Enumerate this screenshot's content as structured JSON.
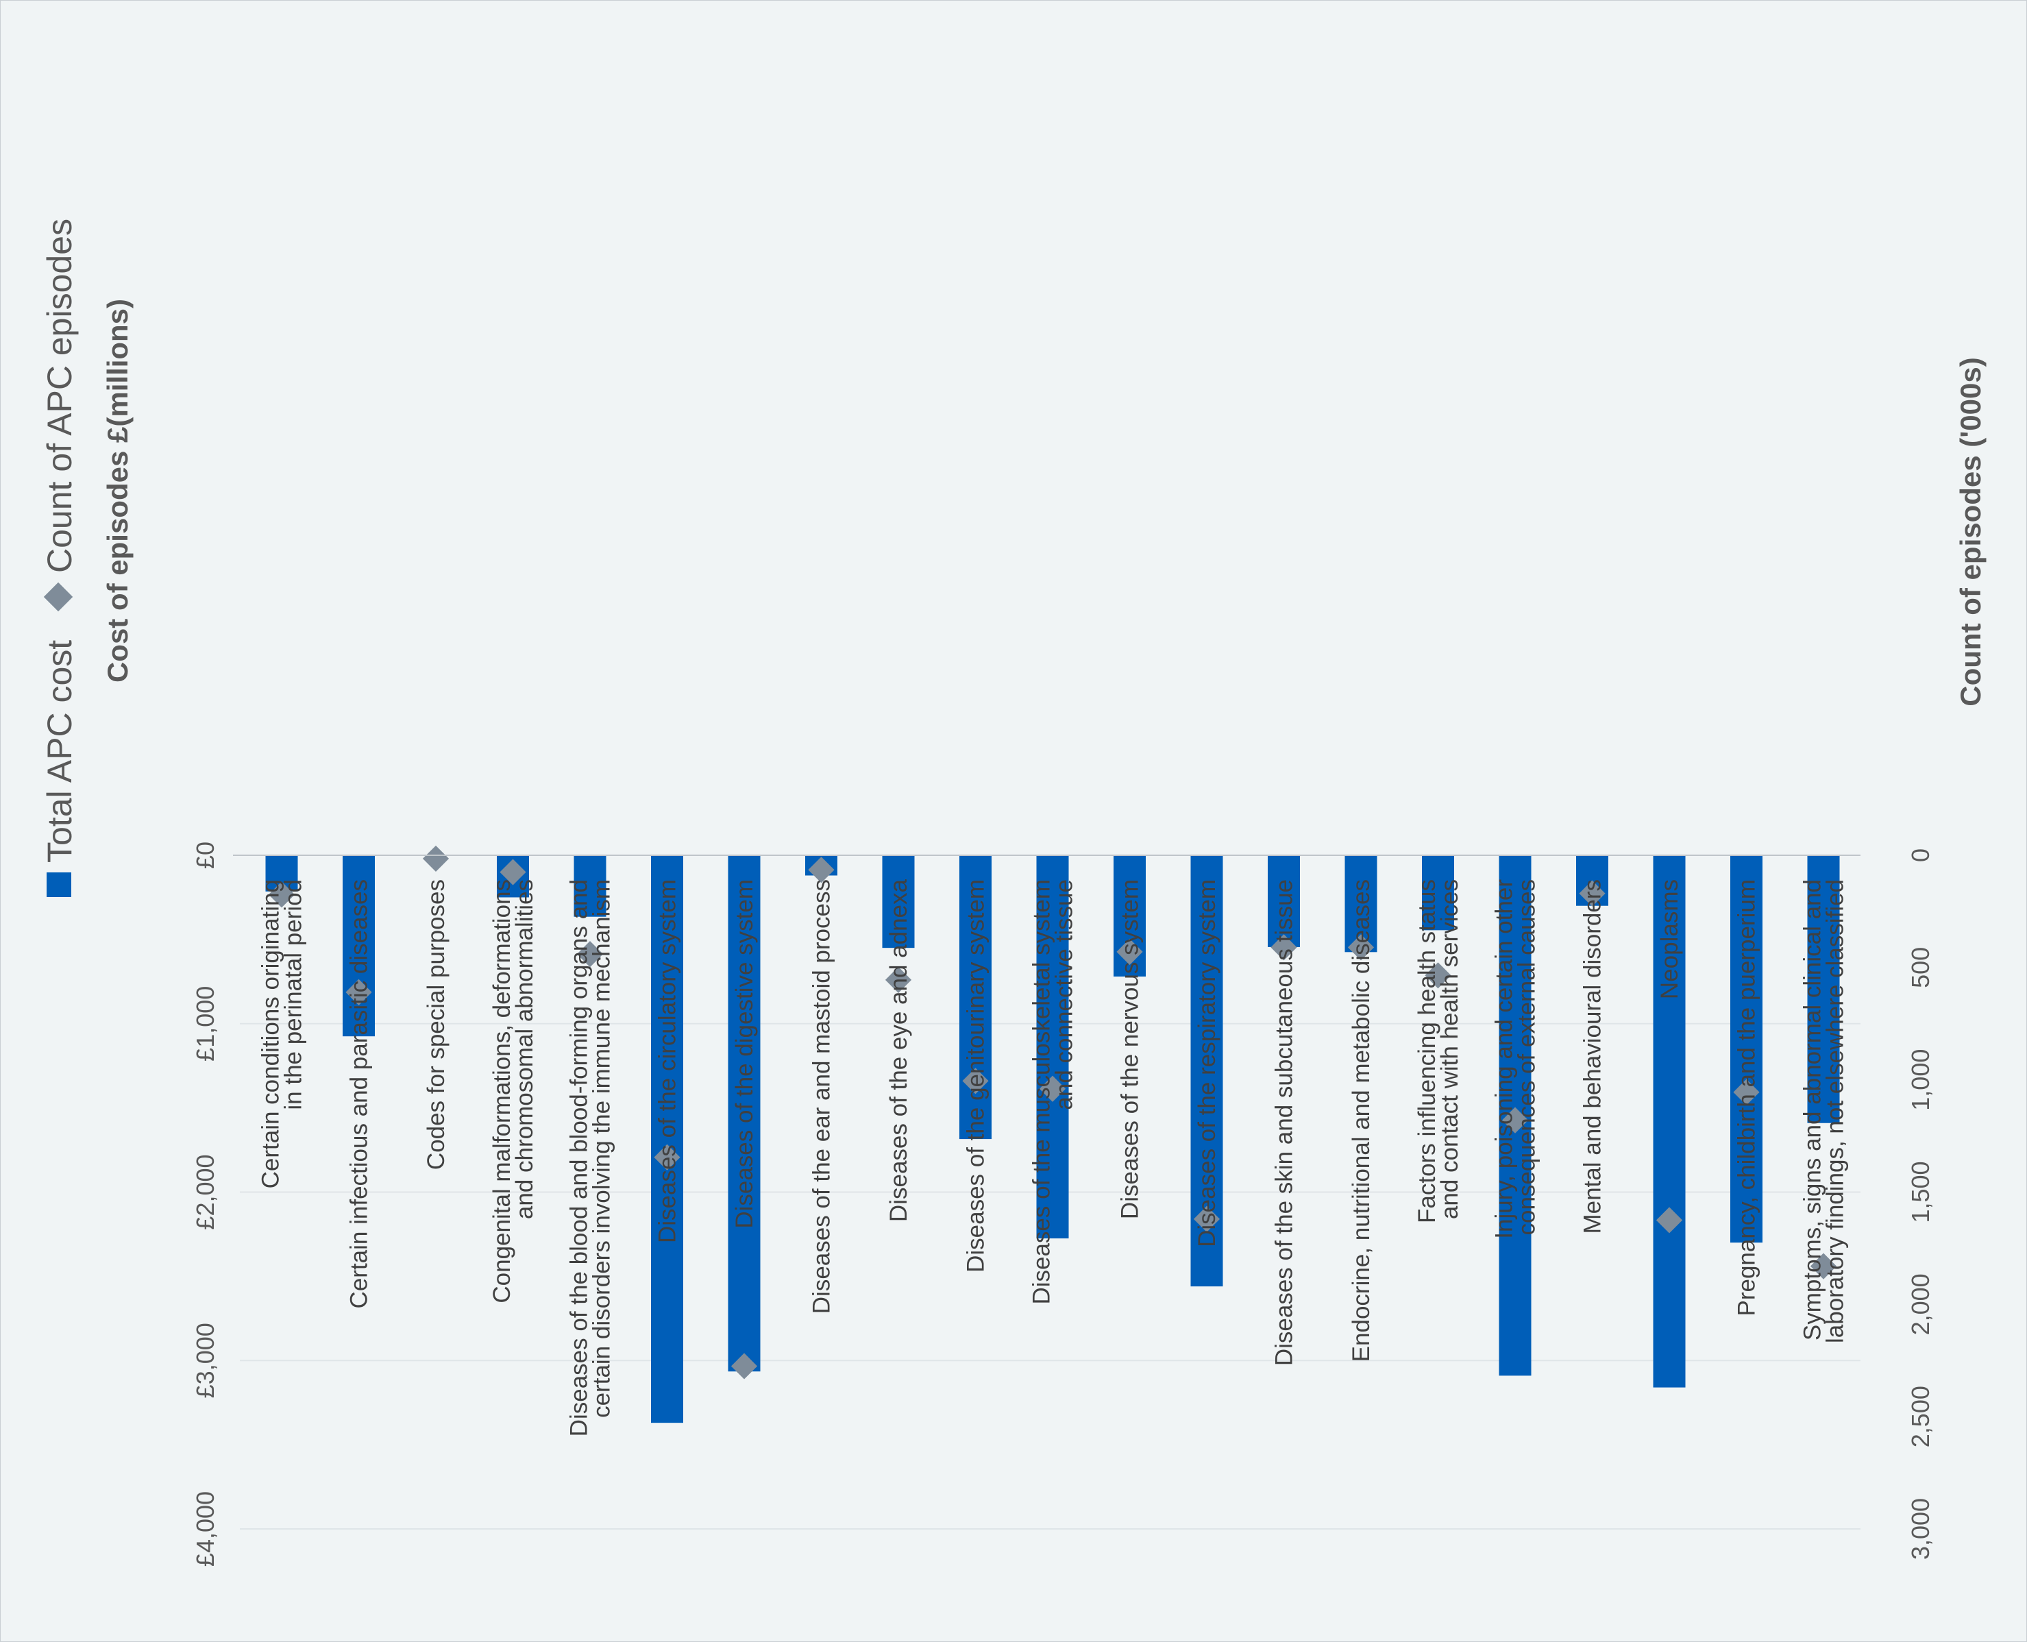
{
  "chart_data": {
    "type": "bar",
    "orientation": "rotated-90",
    "categories": [
      [
        "Certain conditions originating",
        "in the perinatal period"
      ],
      [
        "Certain infectious and parasitic diseases"
      ],
      [
        "Codes for special purposes"
      ],
      [
        "Congenital malformations, deformations",
        "and chromosomal abnormalities"
      ],
      [
        "Diseases of the blood and blood-forming organs and",
        "certain disorders involving the immune mechanism"
      ],
      [
        "Diseases of the circulatory system"
      ],
      [
        "Diseases of the digestive system"
      ],
      [
        "Diseases of the ear and mastoid process"
      ],
      [
        "Diseases of the eye and adnexa"
      ],
      [
        "Diseases of the genitourinary system"
      ],
      [
        "Diseases of the musculoskeletal system",
        "and connective tissue"
      ],
      [
        "Diseases of the nervous system"
      ],
      [
        "Diseases of the respiratory system"
      ],
      [
        "Diseases of the skin and subcutaneous tissue"
      ],
      [
        "Endocrine, nutritional and metabolic diseases"
      ],
      [
        "Factors influencing health status",
        "and contact with health services"
      ],
      [
        "Injury, poisoning and certain other",
        "consequences of external causes"
      ],
      [
        "Mental and behavioural disorders"
      ],
      [
        "Neoplasms"
      ],
      [
        "Pregnancy, childbirth and the puerperium"
      ],
      [
        "Symptoms, signs and abnormal clinical and",
        "laboratory findings, not elsewhere classified"
      ]
    ],
    "series": [
      {
        "name": "Total APC cost",
        "kind": "bar",
        "axis": "left",
        "color": "#005eb8",
        "values": [
          215,
          1075,
          0,
          250,
          365,
          3370,
          3065,
          120,
          550,
          1685,
          2275,
          720,
          2560,
          545,
          575,
          445,
          3090,
          300,
          3160,
          2300,
          1590
        ]
      },
      {
        "name": "Count of APC episodes",
        "kind": "marker",
        "axis": "right",
        "color": "#7f8c99",
        "values": [
          175,
          610,
          15,
          75,
          440,
          1345,
          2275,
          65,
          555,
          1005,
          1040,
          430,
          1620,
          410,
          410,
          535,
          1180,
          170,
          1625,
          1055,
          1830
        ]
      }
    ],
    "y_left": {
      "label": "Cost of episodes £(millions)",
      "range": [
        0,
        4000
      ],
      "ticks": [
        0,
        1000,
        2000,
        3000,
        4000
      ],
      "tick_labels": [
        "£0",
        "£1,000",
        "£2,000",
        "£3,000",
        "£4,000"
      ]
    },
    "y_right": {
      "label": "Count of episodes ('000s)",
      "range": [
        0,
        3000
      ],
      "ticks": [
        0,
        500,
        1000,
        1500,
        2000,
        2500,
        3000
      ],
      "tick_labels": [
        "0",
        "500",
        "1,000",
        "1,500",
        "2,000",
        "2,500",
        "3,000"
      ]
    },
    "grid": true,
    "legend_position": "left"
  }
}
